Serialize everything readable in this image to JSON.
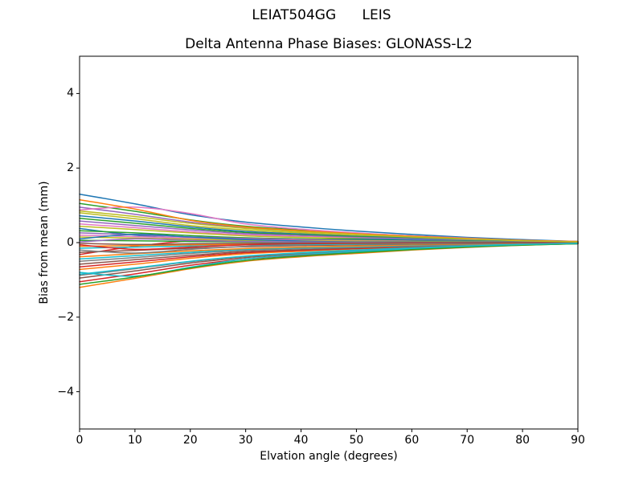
{
  "figure": {
    "suptitle": "LEIAT504GG      LEIS",
    "background": "#ffffff",
    "spine_color": "#000000"
  },
  "chart_data": {
    "type": "line",
    "suptitle": "LEIAT504GG      LEIS",
    "title": "Delta Antenna Phase Biases: GLONASS-L2",
    "xlabel": "Elvation angle (degrees)",
    "ylabel": "Bias from mean (mm)",
    "xlim": [
      0,
      90
    ],
    "ylim": [
      -5,
      5
    ],
    "xticks": [
      0,
      10,
      20,
      30,
      40,
      50,
      60,
      70,
      80,
      90
    ],
    "yticks": [
      -4,
      -2,
      0,
      2,
      4
    ],
    "grid": false,
    "legend": "none",
    "line_width": 1.5,
    "x": [
      0,
      10,
      20,
      30,
      40,
      50,
      60,
      70,
      80,
      90
    ],
    "series": [
      {
        "color": "#1f77b4",
        "values": [
          1.3,
          1.04,
          0.75,
          0.55,
          0.42,
          0.31,
          0.22,
          0.14,
          0.08,
          0.03
        ]
      },
      {
        "color": "#ff7f0e",
        "values": [
          -1.2,
          -0.96,
          -0.7,
          -0.5,
          -0.38,
          -0.29,
          -0.2,
          -0.13,
          -0.07,
          -0.03
        ]
      },
      {
        "color": "#2ca02c",
        "values": [
          1.05,
          0.84,
          0.61,
          0.44,
          0.34,
          0.25,
          0.18,
          0.12,
          0.06,
          0.03
        ]
      },
      {
        "color": "#d62728",
        "values": [
          -1.05,
          -0.84,
          -0.61,
          -0.44,
          -0.34,
          -0.25,
          -0.18,
          -0.12,
          -0.06,
          -0.03
        ]
      },
      {
        "color": "#9467bd",
        "values": [
          0.95,
          0.76,
          0.55,
          0.4,
          0.3,
          0.23,
          0.16,
          0.1,
          0.06,
          0.03
        ]
      },
      {
        "color": "#8c564b",
        "values": [
          -0.95,
          -0.76,
          -0.55,
          -0.4,
          -0.3,
          -0.23,
          -0.16,
          -0.1,
          -0.06,
          -0.03
        ]
      },
      {
        "color": "#e377c2",
        "values": [
          0.88,
          0.95,
          0.78,
          0.5,
          0.36,
          0.26,
          0.18,
          0.12,
          0.06,
          0.03
        ]
      },
      {
        "color": "#7f7f7f",
        "values": [
          -0.88,
          -0.7,
          -0.51,
          -0.37,
          -0.28,
          -0.21,
          -0.15,
          -0.1,
          -0.05,
          -0.02
        ]
      },
      {
        "color": "#bcbd22",
        "values": [
          0.8,
          0.64,
          0.46,
          0.34,
          0.26,
          0.19,
          0.14,
          0.09,
          0.05,
          0.02
        ]
      },
      {
        "color": "#17becf",
        "values": [
          -0.8,
          -0.9,
          -0.66,
          -0.44,
          -0.32,
          -0.24,
          -0.17,
          -0.11,
          -0.06,
          -0.03
        ]
      },
      {
        "color": "#1f77b4",
        "values": [
          0.72,
          0.58,
          0.42,
          0.3,
          0.23,
          0.17,
          0.12,
          0.08,
          0.04,
          0.02
        ]
      },
      {
        "color": "#ff7f0e",
        "values": [
          -0.72,
          -0.58,
          -0.42,
          -0.3,
          -0.23,
          -0.17,
          -0.12,
          -0.08,
          -0.04,
          -0.02
        ]
      },
      {
        "color": "#2ca02c",
        "values": [
          0.65,
          0.52,
          0.38,
          0.27,
          0.21,
          0.16,
          0.11,
          0.07,
          0.04,
          0.02
        ]
      },
      {
        "color": "#d62728",
        "values": [
          -0.65,
          -0.52,
          -0.38,
          -0.27,
          -0.21,
          -0.16,
          -0.11,
          -0.07,
          -0.04,
          -0.02
        ]
      },
      {
        "color": "#9467bd",
        "values": [
          0.58,
          0.46,
          0.34,
          0.24,
          0.19,
          0.14,
          0.1,
          0.06,
          0.03,
          0.02
        ]
      },
      {
        "color": "#8c564b",
        "values": [
          -0.58,
          -0.46,
          -0.34,
          -0.24,
          -0.19,
          -0.14,
          -0.1,
          -0.06,
          -0.03,
          -0.02
        ]
      },
      {
        "color": "#e377c2",
        "values": [
          0.5,
          0.4,
          0.29,
          0.21,
          0.16,
          0.12,
          0.09,
          0.06,
          0.03,
          0.01
        ]
      },
      {
        "color": "#7f7f7f",
        "values": [
          -0.5,
          -0.4,
          -0.29,
          -0.21,
          -0.16,
          -0.12,
          -0.09,
          -0.06,
          -0.03,
          -0.01
        ]
      },
      {
        "color": "#bcbd22",
        "values": [
          0.44,
          0.35,
          0.26,
          0.18,
          0.14,
          0.11,
          0.07,
          0.05,
          0.03,
          0.01
        ]
      },
      {
        "color": "#17becf",
        "values": [
          -0.44,
          -0.35,
          -0.26,
          -0.18,
          -0.14,
          -0.11,
          -0.07,
          -0.05,
          -0.03,
          -0.01
        ]
      },
      {
        "color": "#1f77b4",
        "values": [
          0.38,
          0.2,
          0.1,
          0.05,
          0.08,
          0.1,
          0.08,
          0.05,
          0.03,
          0.01
        ]
      },
      {
        "color": "#ff7f0e",
        "values": [
          -0.38,
          -0.3,
          -0.22,
          -0.16,
          -0.12,
          -0.09,
          -0.06,
          -0.04,
          -0.02,
          -0.01
        ]
      },
      {
        "color": "#2ca02c",
        "values": [
          0.32,
          0.26,
          0.19,
          0.13,
          0.1,
          0.08,
          0.05,
          0.04,
          0.02,
          0.01
        ]
      },
      {
        "color": "#d62728",
        "values": [
          -0.32,
          -0.1,
          0.05,
          0.1,
          0.08,
          0.05,
          0.03,
          0.02,
          0.01,
          0.0
        ]
      },
      {
        "color": "#9467bd",
        "values": [
          0.26,
          0.21,
          0.15,
          0.11,
          0.08,
          0.06,
          0.04,
          0.03,
          0.02,
          0.01
        ]
      },
      {
        "color": "#8c564b",
        "values": [
          -0.26,
          -0.21,
          -0.15,
          -0.11,
          -0.08,
          -0.06,
          -0.04,
          -0.03,
          -0.02,
          -0.01
        ]
      },
      {
        "color": "#e377c2",
        "values": [
          0.2,
          0.16,
          0.12,
          0.08,
          0.06,
          0.05,
          0.03,
          0.02,
          0.01,
          0.01
        ]
      },
      {
        "color": "#7f7f7f",
        "values": [
          -0.2,
          -0.28,
          -0.18,
          -0.1,
          -0.06,
          -0.04,
          -0.03,
          -0.02,
          -0.01,
          0.0
        ]
      },
      {
        "color": "#bcbd22",
        "values": [
          0.15,
          0.12,
          0.09,
          0.06,
          0.05,
          0.04,
          0.03,
          0.02,
          0.01,
          0.0
        ]
      },
      {
        "color": "#17becf",
        "values": [
          -0.15,
          -0.12,
          -0.09,
          -0.06,
          -0.05,
          -0.04,
          -0.03,
          -0.02,
          -0.01,
          0.0
        ]
      },
      {
        "color": "#1f77b4",
        "values": [
          0.1,
          0.22,
          0.15,
          0.08,
          0.04,
          0.02,
          0.02,
          0.01,
          0.01,
          0.0
        ]
      },
      {
        "color": "#ff7f0e",
        "values": [
          -0.1,
          -0.08,
          -0.06,
          -0.04,
          -0.03,
          -0.02,
          -0.02,
          -0.01,
          -0.01,
          0.0
        ]
      },
      {
        "color": "#2ca02c",
        "values": [
          0.06,
          0.05,
          0.03,
          0.02,
          0.02,
          0.01,
          0.01,
          0.01,
          0.0,
          0.0
        ]
      },
      {
        "color": "#d62728",
        "values": [
          -0.06,
          -0.18,
          -0.12,
          -0.06,
          -0.03,
          -0.02,
          -0.01,
          -0.01,
          0.0,
          0.0
        ]
      },
      {
        "color": "#9467bd",
        "values": [
          0.02,
          0.1,
          0.06,
          0.03,
          0.02,
          0.01,
          0.01,
          0.0,
          0.0,
          0.0
        ]
      },
      {
        "color": "#8c564b",
        "values": [
          -0.02,
          -0.05,
          -0.03,
          -0.02,
          -0.01,
          -0.01,
          0.0,
          0.0,
          0.0,
          0.0
        ]
      },
      {
        "color": "#ff7f0e",
        "values": [
          1.15,
          0.9,
          0.6,
          0.42,
          0.32,
          0.24,
          0.17,
          0.11,
          0.06,
          0.03
        ]
      },
      {
        "color": "#2ca02c",
        "values": [
          -1.12,
          -0.92,
          -0.68,
          -0.48,
          -0.36,
          -0.27,
          -0.19,
          -0.12,
          -0.07,
          -0.03
        ]
      },
      {
        "color": "#bcbd22",
        "values": [
          0.85,
          0.7,
          0.52,
          0.38,
          0.29,
          0.22,
          0.15,
          0.1,
          0.05,
          0.02
        ]
      },
      {
        "color": "#17becf",
        "values": [
          -0.85,
          -0.68,
          -0.5,
          -0.36,
          -0.27,
          -0.2,
          -0.14,
          -0.09,
          -0.05,
          -0.02
        ]
      }
    ]
  }
}
